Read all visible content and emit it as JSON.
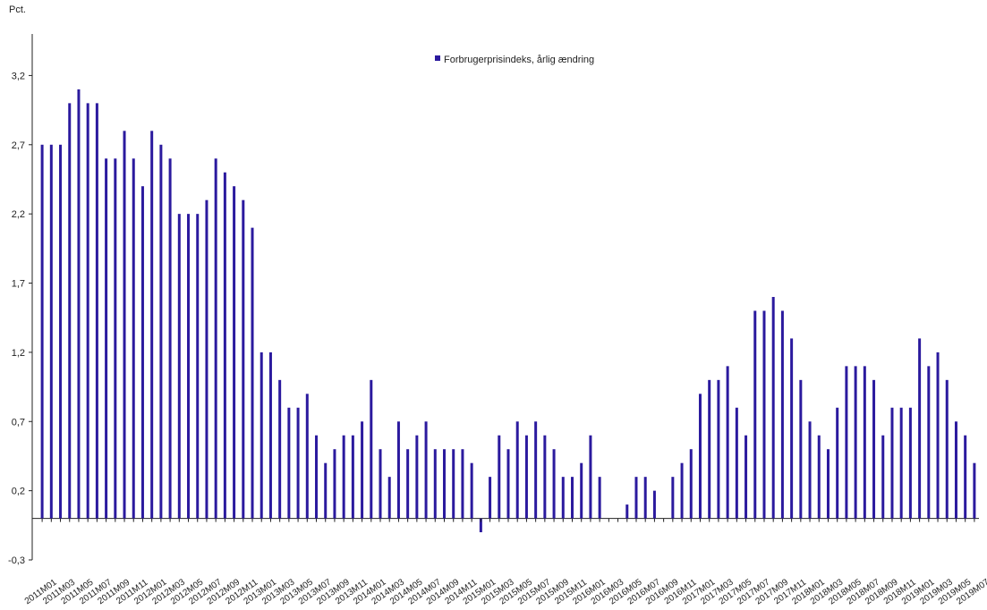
{
  "chart_data": {
    "type": "bar",
    "ylabel": "Pct.",
    "ylim": [
      -0.3,
      3.5
    ],
    "yticks": [
      -0.3,
      0.2,
      0.7,
      1.2,
      1.7,
      2.2,
      2.7,
      3.2
    ],
    "ytick_labels": [
      "-0,3",
      "0,2",
      "0,7",
      "1,2",
      "1,7",
      "2,2",
      "2,7",
      "3,2"
    ],
    "grid": false,
    "legend_position": "top-center",
    "color": "#2b1a9e",
    "categories": [
      "2011M01",
      "2011M02",
      "2011M03",
      "2011M04",
      "2011M05",
      "2011M06",
      "2011M07",
      "2011M08",
      "2011M09",
      "2011M10",
      "2011M11",
      "2011M12",
      "2012M01",
      "2012M02",
      "2012M03",
      "2012M04",
      "2012M05",
      "2012M06",
      "2012M07",
      "2012M08",
      "2012M09",
      "2012M10",
      "2012M11",
      "2012M12",
      "2013M01",
      "2013M02",
      "2013M03",
      "2013M04",
      "2013M05",
      "2013M06",
      "2013M07",
      "2013M08",
      "2013M09",
      "2013M10",
      "2013M11",
      "2013M12",
      "2014M01",
      "2014M02",
      "2014M03",
      "2014M04",
      "2014M05",
      "2014M06",
      "2014M07",
      "2014M08",
      "2014M09",
      "2014M10",
      "2014M11",
      "2014M12",
      "2015M01",
      "2015M02",
      "2015M03",
      "2015M04",
      "2015M05",
      "2015M06",
      "2015M07",
      "2015M08",
      "2015M09",
      "2015M10",
      "2015M11",
      "2015M12",
      "2016M01",
      "2016M02",
      "2016M03",
      "2016M04",
      "2016M05",
      "2016M06",
      "2016M07",
      "2016M08",
      "2016M09",
      "2016M10",
      "2016M11",
      "2016M12",
      "2017M01",
      "2017M02",
      "2017M03",
      "2017M04",
      "2017M05",
      "2017M06",
      "2017M07",
      "2017M08",
      "2017M09",
      "2017M10",
      "2017M11",
      "2017M12",
      "2018M01",
      "2018M02",
      "2018M03",
      "2018M04",
      "2018M05",
      "2018M06",
      "2018M07",
      "2018M08",
      "2018M09",
      "2018M10",
      "2018M11",
      "2018M12",
      "2019M01",
      "2019M02",
      "2019M03",
      "2019M04",
      "2019M05",
      "2019M06",
      "2019M07"
    ],
    "xtick_labels": [
      "2011M01",
      "2011M03",
      "2011M05",
      "2011M07",
      "2011M09",
      "2011M11",
      "2012M01",
      "2012M03",
      "2012M05",
      "2012M07",
      "2012M09",
      "2012M11",
      "2013M01",
      "2013M03",
      "2013M05",
      "2013M07",
      "2013M09",
      "2013M11",
      "2014M01",
      "2014M03",
      "2014M05",
      "2014M07",
      "2014M09",
      "2014M11",
      "2015M01",
      "2015M03",
      "2015M05",
      "2015M07",
      "2015M09",
      "2015M11",
      "2016M01",
      "2016M03",
      "2016M05",
      "2016M07",
      "2016M09",
      "2016M11",
      "2017M01",
      "2017M03",
      "2017M05",
      "2017M07",
      "2017M09",
      "2017M11",
      "2018M01",
      "2018M03",
      "2018M05",
      "2018M07",
      "2018M09",
      "2018M11",
      "2019M01",
      "2019M03",
      "2019M05",
      "2019M07"
    ],
    "series": [
      {
        "name": "Forbrugerprisindeks, årlig ændring",
        "values": [
          2.7,
          2.7,
          2.7,
          3.0,
          3.1,
          3.0,
          3.0,
          2.6,
          2.6,
          2.8,
          2.6,
          2.4,
          2.8,
          2.7,
          2.6,
          2.2,
          2.2,
          2.2,
          2.3,
          2.6,
          2.5,
          2.4,
          2.3,
          2.1,
          1.2,
          1.2,
          1.0,
          0.8,
          0.8,
          0.9,
          0.6,
          0.4,
          0.5,
          0.6,
          0.6,
          0.7,
          1.0,
          0.5,
          0.3,
          0.7,
          0.5,
          0.6,
          0.7,
          0.5,
          0.5,
          0.5,
          0.5,
          0.4,
          -0.1,
          0.3,
          0.6,
          0.5,
          0.7,
          0.6,
          0.7,
          0.6,
          0.5,
          0.3,
          0.3,
          0.4,
          0.6,
          0.3,
          0.0,
          0.0,
          0.1,
          0.3,
          0.3,
          0.2,
          0.0,
          0.3,
          0.4,
          0.5,
          0.9,
          1.0,
          1.0,
          1.1,
          0.8,
          0.6,
          1.5,
          1.5,
          1.6,
          1.5,
          1.3,
          1.0,
          0.7,
          0.6,
          0.5,
          0.8,
          1.1,
          1.1,
          1.1,
          1.0,
          0.6,
          0.8,
          0.8,
          0.8,
          1.3,
          1.1,
          1.2,
          1.0,
          0.7,
          0.6,
          0.4
        ]
      }
    ]
  }
}
